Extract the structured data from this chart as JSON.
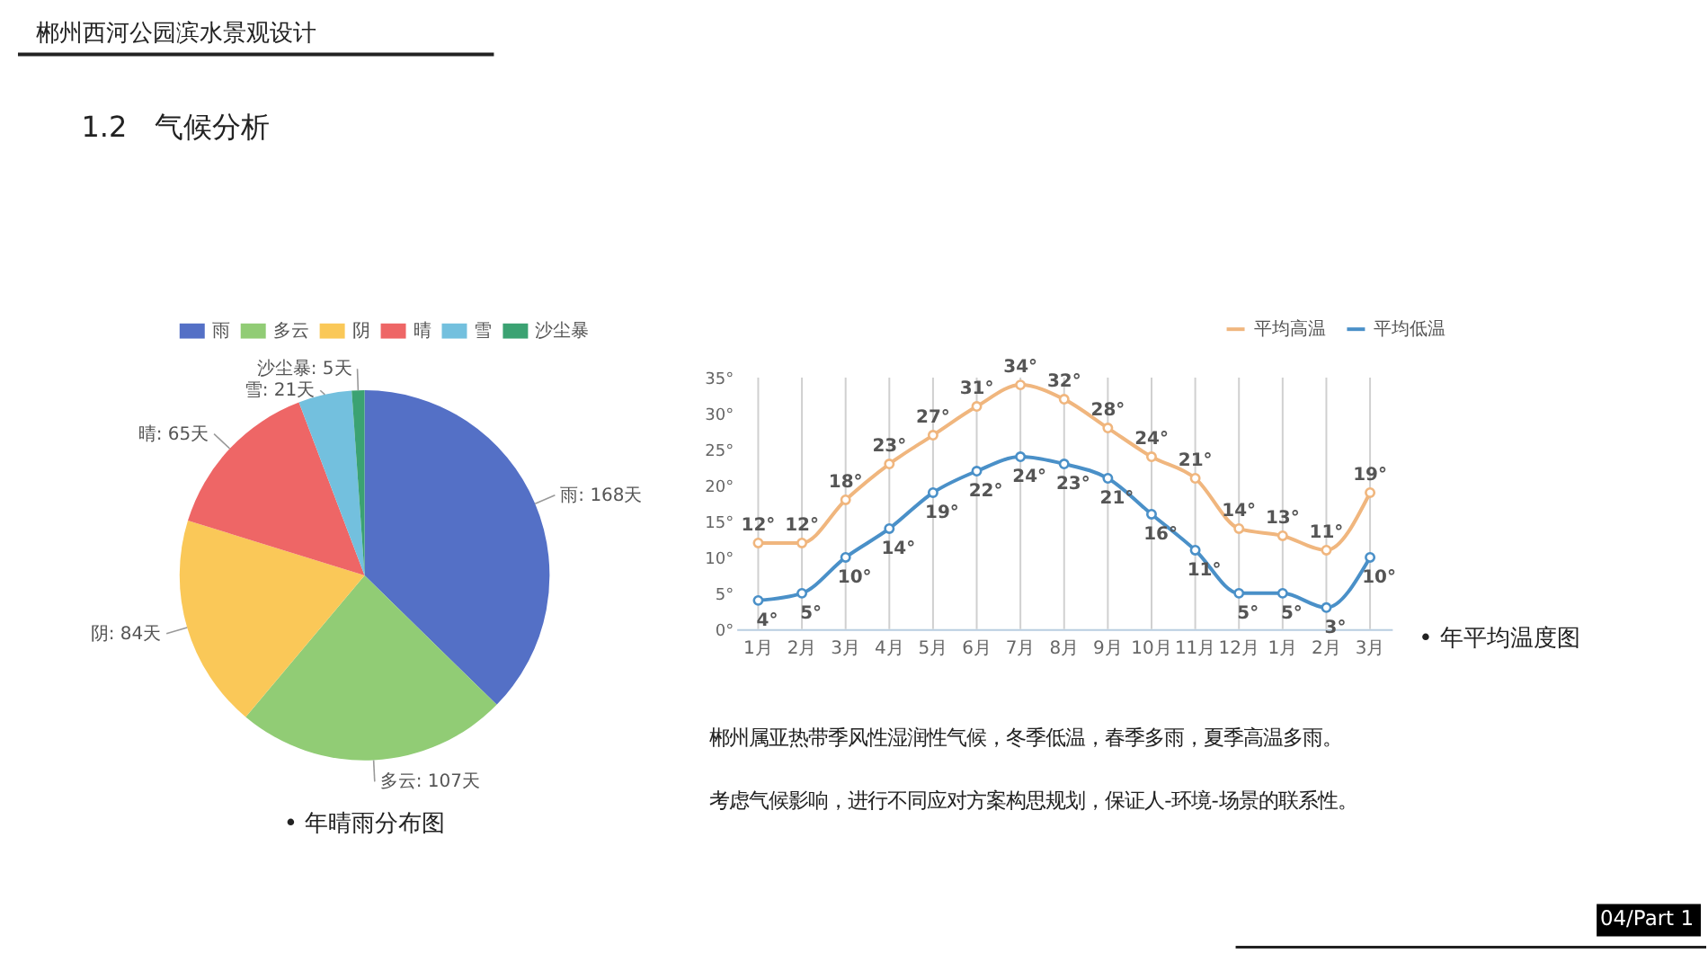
{
  "chart_data": [
    {
      "type": "pie",
      "categories": [
        "雨",
        "多云",
        "阴",
        "晴",
        "雪",
        "沙尘暴"
      ],
      "values": [
        168,
        107,
        84,
        65,
        21,
        5
      ],
      "colors": [
        "#5470c6",
        "#91cc75",
        "#fac858",
        "#ee6666",
        "#73c0de",
        "#3ba272"
      ],
      "value_labels": [
        "雨: 168天",
        "多云: 107天",
        "阴: 84天",
        "晴: 65天",
        "雪: 21天",
        "沙尘暴: 5天"
      ],
      "legend": "top",
      "annotations": [
        "• 年晴雨分布图"
      ]
    },
    {
      "type": "line",
      "categories": [
        "1月",
        "2月",
        "3月",
        "4月",
        "5月",
        "6月",
        "7月",
        "8月",
        "9月",
        "10月",
        "11月",
        "12月",
        "1月",
        "2月",
        "3月"
      ],
      "series": [
        {
          "name": "平均高温",
          "color": "#f0b67e",
          "values": [
            12,
            12,
            18,
            23,
            27,
            31,
            34,
            32,
            28,
            24,
            21,
            14,
            13,
            11,
            19
          ],
          "value_labels": [
            "12°",
            "12°",
            "18°",
            "23°",
            "27°",
            "31°",
            "34°",
            "32°",
            "28°",
            "24°",
            "21°",
            "14°",
            "13°",
            "11°",
            "19°"
          ]
        },
        {
          "name": "平均低温",
          "color": "#4a90c8",
          "values": [
            4,
            5,
            10,
            14,
            19,
            22,
            24,
            23,
            21,
            16,
            11,
            5,
            5,
            3,
            10
          ],
          "value_labels": [
            "4°",
            "5°",
            "10°",
            "14°",
            "19°",
            "22°",
            "24°",
            "23°",
            "21°",
            "16°",
            "11°",
            "5°",
            "5°",
            "3°",
            "10°"
          ]
        }
      ],
      "ylim": [
        0,
        35
      ],
      "yticks": [
        {
          "value": 0,
          "label": "0°"
        },
        {
          "value": 5,
          "label": "5°"
        },
        {
          "value": 10,
          "label": "10°"
        },
        {
          "value": 15,
          "label": "15°"
        },
        {
          "value": 20,
          "label": "20°"
        },
        {
          "value": 25,
          "label": "25°"
        },
        {
          "value": 30,
          "label": "30°"
        },
        {
          "value": 35,
          "label": "35°"
        }
      ],
      "grid": "x",
      "legend": "top right",
      "marker": "circle",
      "line_style": "solid",
      "annotations": [
        "• 年平均温度图"
      ]
    },
    {
      "type": "other",
      "title": "郴州西河公园滨水景观设计",
      "annotations": [
        "1.2",
        "气候分析",
        "郴州属亚热带季风性湿润性气候，冬季低温，春季多雨，夏季高温多雨。",
        "考虑气候影响，进行不同应对方案构思规划，保证人-环境-场景的联系性。",
        "04/Part 1"
      ]
    }
  ]
}
